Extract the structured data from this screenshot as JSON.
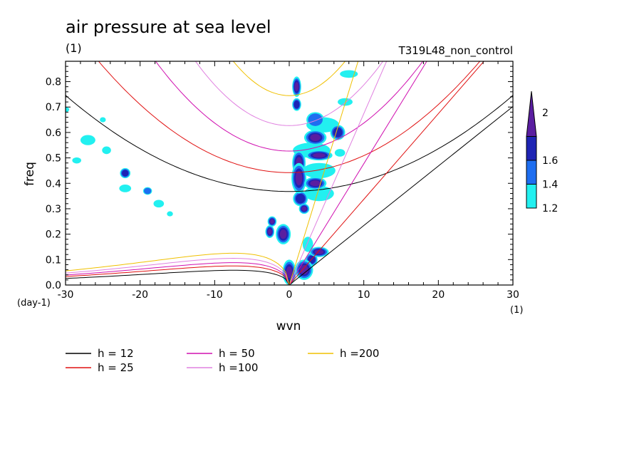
{
  "chart_data": {
    "type": "heatmap",
    "title": "air pressure at sea level",
    "title_units": "(1)",
    "experiment": "T319L48_non_control",
    "xlabel": "wvn",
    "ylabel": "freq",
    "x_units": "(1)",
    "y_units": "(day-1)",
    "xlim": [
      -30,
      30
    ],
    "ylim": [
      0,
      0.88
    ],
    "x_ticks": [
      -30,
      -20,
      -10,
      0,
      10,
      20,
      30
    ],
    "y_ticks": [
      0.0,
      0.1,
      0.2,
      0.3,
      0.4,
      0.5,
      0.6,
      0.7,
      0.8
    ],
    "x_tick_labels": [
      "-30",
      "-20",
      "-10",
      "0",
      "10",
      "20",
      "30"
    ],
    "y_tick_labels": [
      "0.0",
      "0.1",
      "0.2",
      "0.3",
      "0.4",
      "0.5",
      "0.6",
      "0.7",
      "0.8"
    ],
    "colorbar": {
      "levels": [
        1.2,
        1.4,
        1.6,
        2
      ],
      "labels": [
        "1.2",
        "1.4",
        "1.6",
        "2"
      ],
      "colors": [
        "#22f0f0",
        "#1e6ef0",
        "#1e24b4",
        "#5a1ea0"
      ]
    },
    "dispersion_curves": [
      {
        "name": "h = 12",
        "label": "h = 12",
        "color": "#000000",
        "min_freq": 0.368,
        "curv": 0.00042,
        "kelvin_slope": 0.0234,
        "mrg_peak": 0.058,
        "mrg_at": -7.5
      },
      {
        "name": "h = 25",
        "label": "h = 25",
        "color": "#e01010",
        "min_freq": 0.442,
        "curv": 0.00067,
        "kelvin_slope": 0.0337,
        "mrg_peak": 0.075,
        "mrg_at": -7.5
      },
      {
        "name": "h = 50",
        "label": "h = 50",
        "color": "#d010b0",
        "min_freq": 0.527,
        "curv": 0.0011,
        "kelvin_slope": 0.0477,
        "mrg_peak": 0.088,
        "mrg_at": -7.5
      },
      {
        "name": "h =100",
        "label": "h =100",
        "color": "#e080e0",
        "min_freq": 0.627,
        "curv": 0.0016,
        "kelvin_slope": 0.0674,
        "mrg_peak": 0.105,
        "mrg_at": -7.5
      },
      {
        "name": "h =200",
        "label": "h =200",
        "color": "#f0c000",
        "min_freq": 0.745,
        "curv": 0.0024,
        "kelvin_slope": 0.0953,
        "mrg_peak": 0.125,
        "mrg_at": -7.5
      }
    ],
    "shaded_regions": [
      {
        "wvn": 1.0,
        "freq": 0.78,
        "rw": 0.6,
        "rf": 0.04,
        "level": 4
      },
      {
        "wvn": 1.0,
        "freq": 0.71,
        "rw": 0.6,
        "rf": 0.025,
        "level": 3
      },
      {
        "wvn": 3.5,
        "freq": 0.65,
        "rw": 1.2,
        "rf": 0.03,
        "level": 2
      },
      {
        "wvn": 4.5,
        "freq": 0.63,
        "rw": 2.2,
        "rf": 0.03,
        "level": 1
      },
      {
        "wvn": 3.5,
        "freq": 0.58,
        "rw": 1.5,
        "rf": 0.03,
        "level": 4
      },
      {
        "wvn": 6.5,
        "freq": 0.6,
        "rw": 1.0,
        "rf": 0.03,
        "level": 3
      },
      {
        "wvn": 3.0,
        "freq": 0.53,
        "rw": 2.5,
        "rf": 0.03,
        "level": 1
      },
      {
        "wvn": 4.0,
        "freq": 0.51,
        "rw": 1.8,
        "rf": 0.02,
        "level": 4
      },
      {
        "wvn": 1.3,
        "freq": 0.48,
        "rw": 0.9,
        "rf": 0.05,
        "level": 4
      },
      {
        "wvn": 4.0,
        "freq": 0.45,
        "rw": 2.2,
        "rf": 0.03,
        "level": 1
      },
      {
        "wvn": 1.3,
        "freq": 0.42,
        "rw": 1.0,
        "rf": 0.06,
        "level": 4
      },
      {
        "wvn": 3.5,
        "freq": 0.4,
        "rw": 1.5,
        "rf": 0.025,
        "level": 4
      },
      {
        "wvn": 4.0,
        "freq": 0.36,
        "rw": 2.0,
        "rf": 0.03,
        "level": 1
      },
      {
        "wvn": 1.5,
        "freq": 0.34,
        "rw": 1.0,
        "rf": 0.03,
        "level": 3
      },
      {
        "wvn": 2.0,
        "freq": 0.3,
        "rw": 0.7,
        "rf": 0.02,
        "level": 4
      },
      {
        "wvn": -2.3,
        "freq": 0.25,
        "rw": 0.6,
        "rf": 0.02,
        "level": 4
      },
      {
        "wvn": -2.6,
        "freq": 0.21,
        "rw": 0.6,
        "rf": 0.025,
        "level": 4
      },
      {
        "wvn": -0.8,
        "freq": 0.2,
        "rw": 1.0,
        "rf": 0.04,
        "level": 4
      },
      {
        "wvn": 2.5,
        "freq": 0.16,
        "rw": 0.7,
        "rf": 0.03,
        "level": 1
      },
      {
        "wvn": 4.0,
        "freq": 0.13,
        "rw": 1.3,
        "rf": 0.02,
        "level": 4
      },
      {
        "wvn": 0.0,
        "freq": 0.05,
        "rw": 0.9,
        "rf": 0.05,
        "level": 4
      },
      {
        "wvn": 2.0,
        "freq": 0.06,
        "rw": 1.2,
        "rf": 0.04,
        "level": 4
      },
      {
        "wvn": 3.0,
        "freq": 0.1,
        "rw": 0.8,
        "rf": 0.025,
        "level": 3
      },
      {
        "wvn": 8.0,
        "freq": 0.83,
        "rw": 1.2,
        "rf": 0.015,
        "level": 1
      },
      {
        "wvn": 7.5,
        "freq": 0.72,
        "rw": 1.0,
        "rf": 0.015,
        "level": 1
      },
      {
        "wvn": 6.8,
        "freq": 0.52,
        "rw": 0.7,
        "rf": 0.015,
        "level": 1
      },
      {
        "wvn": -27.0,
        "freq": 0.57,
        "rw": 1.0,
        "rf": 0.02,
        "level": 1
      },
      {
        "wvn": -24.5,
        "freq": 0.53,
        "rw": 0.6,
        "rf": 0.015,
        "level": 1
      },
      {
        "wvn": -28.5,
        "freq": 0.49,
        "rw": 0.6,
        "rf": 0.012,
        "level": 1
      },
      {
        "wvn": -22.0,
        "freq": 0.44,
        "rw": 0.7,
        "rf": 0.02,
        "level": 3
      },
      {
        "wvn": -22.0,
        "freq": 0.38,
        "rw": 0.8,
        "rf": 0.015,
        "level": 1
      },
      {
        "wvn": -19.0,
        "freq": 0.37,
        "rw": 0.6,
        "rf": 0.015,
        "level": 2
      },
      {
        "wvn": -17.5,
        "freq": 0.32,
        "rw": 0.7,
        "rf": 0.015,
        "level": 1
      },
      {
        "wvn": -30.0,
        "freq": 0.69,
        "rw": 0.5,
        "rf": 0.01,
        "level": 1
      },
      {
        "wvn": -25.0,
        "freq": 0.65,
        "rw": 0.4,
        "rf": 0.01,
        "level": 1
      },
      {
        "wvn": -16.0,
        "freq": 0.28,
        "rw": 0.4,
        "rf": 0.01,
        "level": 1
      }
    ]
  }
}
